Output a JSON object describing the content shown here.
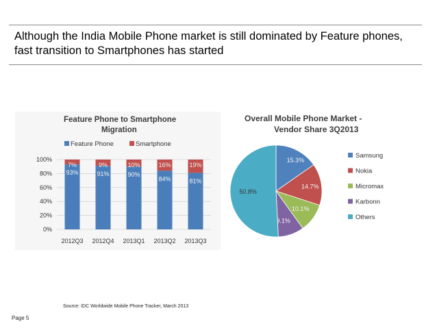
{
  "headline": "Although the India Mobile Phone market is still dominated by Feature phones, fast transition to Smartphones has started",
  "source": "Source: IDC Worldwide Mobile Phone Tracker, March 2013",
  "page_label": "Page 5",
  "colors": {
    "feature": "#4a7ebb",
    "smart": "#c0504d",
    "samsung": "#4f81bd",
    "nokia": "#c0504d",
    "micromax": "#9bbb59",
    "karbonn": "#8064a2",
    "others": "#4bacc6"
  },
  "chart_data": [
    {
      "type": "bar",
      "stacked": true,
      "title_line1": "Feature Phone to Smartphone",
      "title_line2": "Migration",
      "categories": [
        "2012Q3",
        "2012Q4",
        "2013Q1",
        "2013Q2",
        "2013Q3"
      ],
      "series": [
        {
          "name": "Feature Phone",
          "values": [
            93,
            91,
            90,
            84,
            81
          ],
          "labels": [
            "93%",
            "91%",
            "90%",
            "84%",
            "81%"
          ]
        },
        {
          "name": "Smartphone",
          "values": [
            7,
            9,
            10,
            16,
            19
          ],
          "labels": [
            "7%",
            "9%",
            "10%",
            "16%",
            "19%"
          ]
        }
      ],
      "ylim": [
        0,
        100
      ],
      "yticks": [
        "0%",
        "20%",
        "40%",
        "60%",
        "80%",
        "100%"
      ],
      "legend": "top"
    },
    {
      "type": "pie",
      "title_line1": "Overall Mobile Phone Market -",
      "title_line2": "Vendor Share 3Q2013",
      "slices": [
        {
          "name": "Samsung",
          "value": 15.3,
          "label": "15.3%"
        },
        {
          "name": "Nokia",
          "value": 14.7,
          "label": "14.7%"
        },
        {
          "name": "Micromax",
          "value": 10.1,
          "label": "10.1%"
        },
        {
          "name": "Karbonn",
          "value": 9.1,
          "label": "9.1%"
        },
        {
          "name": "Others",
          "value": 50.8,
          "label": "50.8%"
        }
      ],
      "legend": "right"
    }
  ]
}
